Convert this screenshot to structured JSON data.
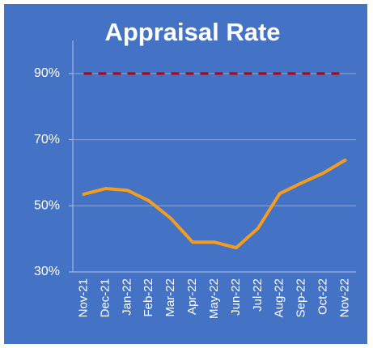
{
  "chart_data": {
    "type": "line",
    "title": "Appraisal Rate",
    "categories": [
      "Nov-21",
      "Dec-21",
      "Jan-22",
      "Feb-22",
      "Mar-22",
      "Apr-22",
      "May-22",
      "Jun-22",
      "Jul-22",
      "Aug-22",
      "Sep-22",
      "Oct-22",
      "Nov-22"
    ],
    "values": [
      53.5,
      55.2,
      54.7,
      51.5,
      46.2,
      39,
      39,
      37.3,
      43.2,
      53.7,
      56.9,
      59.9,
      63.8
    ],
    "color": "#f39c1f",
    "reference_line": {
      "value": 90,
      "color": "#c00000"
    },
    "ylim": [
      30,
      100
    ],
    "yticks": [
      {
        "value": 30,
        "label": "30%"
      },
      {
        "value": 50,
        "label": "50%"
      },
      {
        "value": 70,
        "label": "70%"
      },
      {
        "value": 90,
        "label": "90%"
      }
    ],
    "grid": true
  }
}
